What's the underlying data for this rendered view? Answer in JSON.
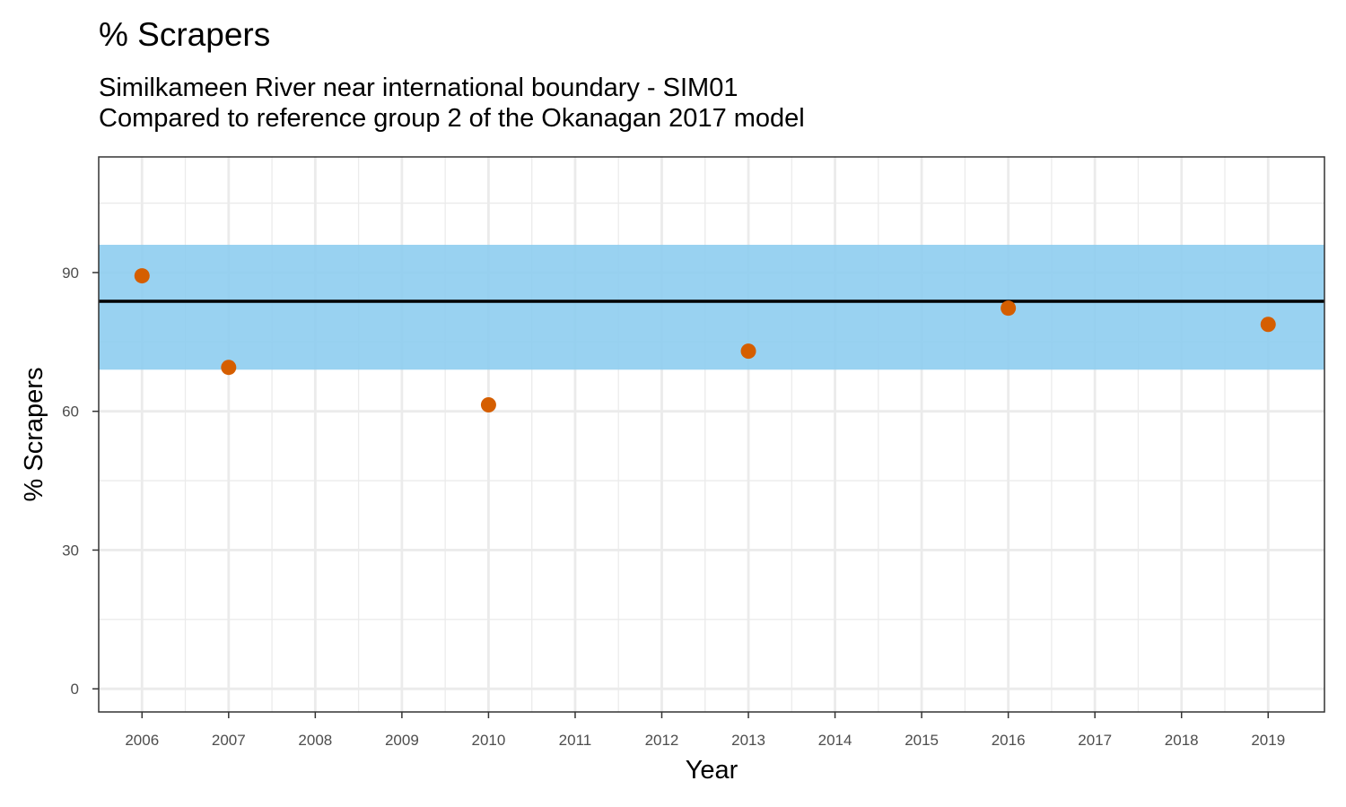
{
  "chart_data": {
    "type": "scatter",
    "title": "% Scrapers",
    "subtitle": [
      "Similkameen River near international boundary - SIM01",
      "Compared to reference group 2 of the Okanagan 2017 model"
    ],
    "xlabel": "Year",
    "ylabel": "% Scrapers",
    "xlim": [
      2005.5,
      2019.65
    ],
    "ylim": [
      -5,
      115
    ],
    "x_ticks": [
      "2006",
      "2007",
      "2008",
      "2009",
      "2010",
      "2011",
      "2012",
      "2013",
      "2014",
      "2015",
      "2016",
      "2017",
      "2018",
      "2019"
    ],
    "y_ticks": [
      "0",
      "30",
      "60",
      "90"
    ],
    "grid": true,
    "reference_band": {
      "low": 69,
      "high": 96,
      "color": "#8ecdef"
    },
    "reference_line": {
      "value": 83.8,
      "color": "#000000"
    },
    "point_color": "#d55e00",
    "points": [
      {
        "x": 2006,
        "y": 89.3
      },
      {
        "x": 2007,
        "y": 69.5
      },
      {
        "x": 2010,
        "y": 61.4
      },
      {
        "x": 2013,
        "y": 73.0
      },
      {
        "x": 2016,
        "y": 82.3
      },
      {
        "x": 2019,
        "y": 78.8
      }
    ]
  }
}
